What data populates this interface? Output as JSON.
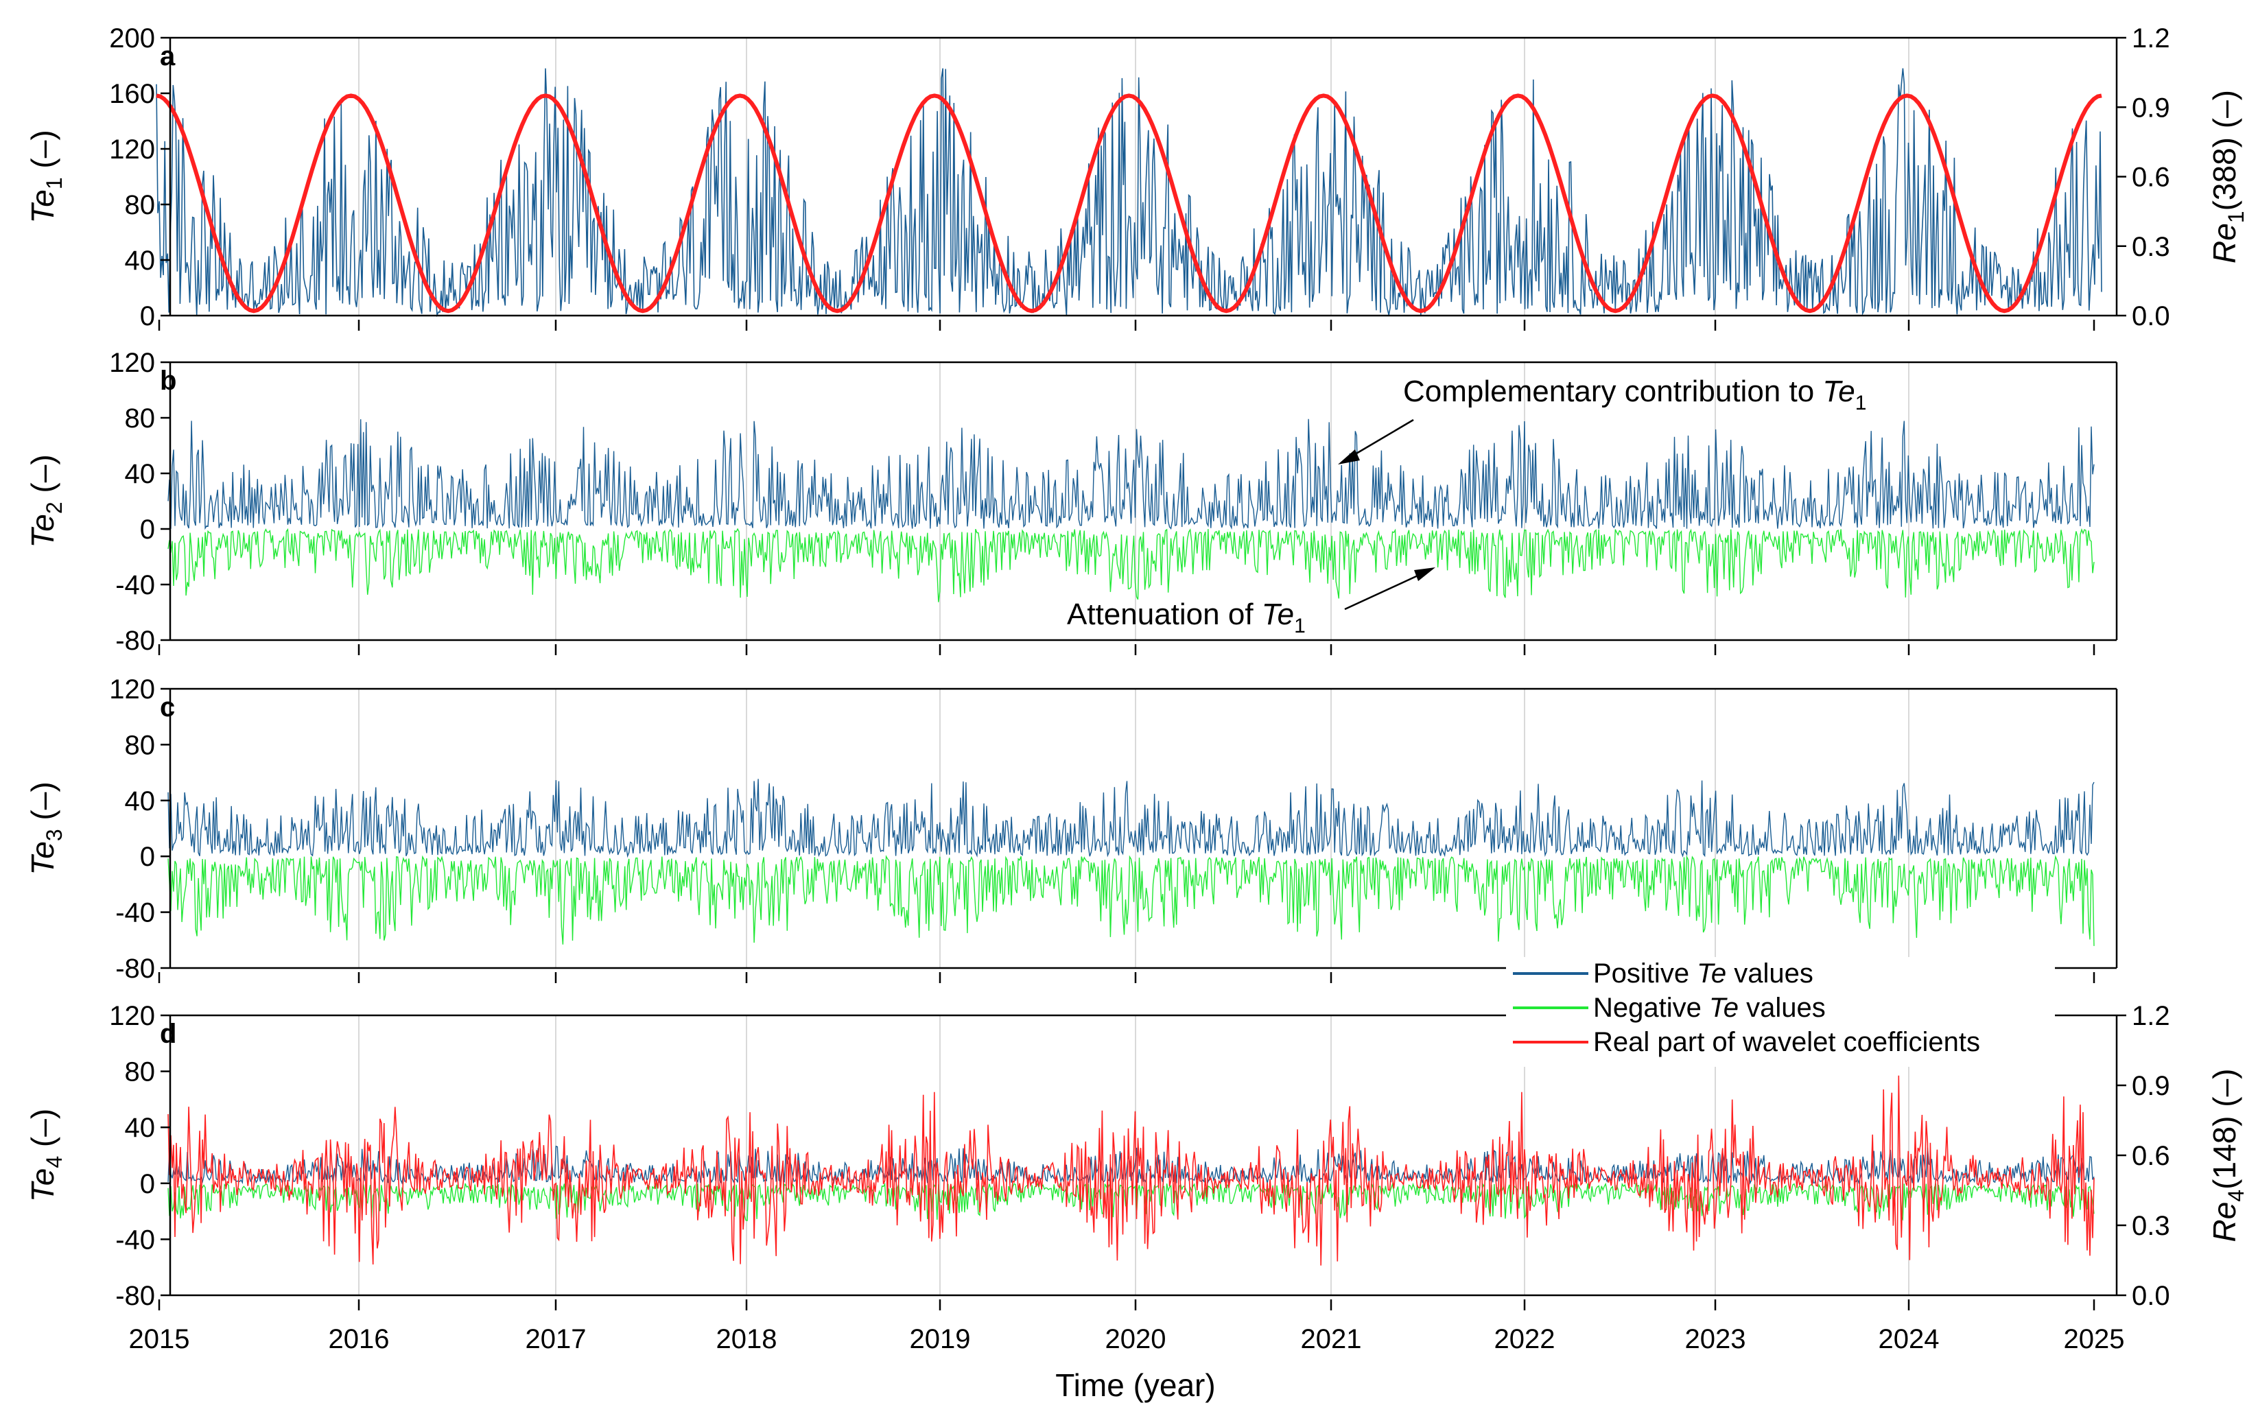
{
  "figure": {
    "xlabel": "Time (year)",
    "year_ticks": [
      "2015",
      "2016",
      "2017",
      "2018",
      "2019",
      "2020",
      "2021",
      "2022",
      "2023",
      "2024",
      "2025"
    ],
    "legend": [
      {
        "label_pre": "Positive ",
        "label_italic": "Te",
        "label_post": " values",
        "color": "#1a5d93"
      },
      {
        "label_pre": "Negative ",
        "label_italic": "Te",
        "label_post": " values",
        "color": "#22e836"
      },
      {
        "label_pre": "Real part of wavelet coefficients",
        "label_italic": "",
        "label_post": "",
        "color": "#ff2020"
      }
    ],
    "annotations": {
      "complementary": {
        "text": "Complementary contribution to ",
        "italic": "Te",
        "sub": "1"
      },
      "attenuation": {
        "text": "Attenuation of ",
        "italic": "Te",
        "sub": "1"
      }
    }
  },
  "chart_data": [
    {
      "panel": "a",
      "type": "line",
      "x_range": [
        2015,
        2025
      ],
      "ylabel": {
        "italic": "Te",
        "sub": "1",
        "unit": " (–)"
      },
      "ylim": [
        0,
        200
      ],
      "yticks": [
        "0",
        "40",
        "80",
        "120",
        "160",
        "200"
      ],
      "y2label": {
        "italic": "Re",
        "sub": "1",
        "unit": "(388)  (–)"
      },
      "y2lim": [
        0.0,
        1.2
      ],
      "y2ticks": [
        "0.0",
        "0.3",
        "0.6",
        "0.9",
        "1.2"
      ],
      "series": [
        {
          "name": "",
          "color": "#1a5d93",
          "note": "dense daily series, approx. 0–180 with annual cycle (peaks near January)",
          "amplitude_range": [
            0,
            180
          ]
        },
        {
          "name": "",
          "axis": "y2",
          "color": "#ff2020",
          "type": "sine",
          "period_years": 1.0,
          "maxima_x": [
            2015.0,
            2015.98,
            2016.98,
            2017.98,
            2019.02,
            2020.03,
            2021.05,
            2022.05,
            2023.05,
            2024.02,
            2025.0
          ],
          "minima_x": [
            2015.48,
            2016.48,
            2017.46,
            2018.5,
            2019.52,
            2020.52,
            2021.56,
            2022.55,
            2023.54,
            2024.55
          ],
          "max_value": 0.95,
          "min_value": 0.02
        }
      ]
    },
    {
      "panel": "b",
      "type": "line",
      "x_range": [
        2015,
        2025
      ],
      "ylabel": {
        "italic": "Te",
        "sub": "2",
        "unit": " (–)"
      },
      "ylim": [
        -80,
        120
      ],
      "yticks": [
        "-80",
        "-40",
        "0",
        "40",
        "80",
        "120"
      ],
      "series": [
        {
          "name": "Positive Te values",
          "color": "#1a5d93",
          "range": [
            0,
            80
          ]
        },
        {
          "name": "Negative Te values",
          "color": "#22e836",
          "range": [
            -50,
            0
          ]
        }
      ]
    },
    {
      "panel": "c",
      "type": "line",
      "x_range": [
        2015,
        2025
      ],
      "ylabel": {
        "italic": "Te",
        "sub": "3",
        "unit": " (–)"
      },
      "ylim": [
        -80,
        120
      ],
      "yticks": [
        "-80",
        "-40",
        "0",
        "40",
        "80",
        "120"
      ],
      "series": [
        {
          "name": "Positive Te values",
          "color": "#1a5d93",
          "range": [
            0,
            55
          ]
        },
        {
          "name": "Negative Te values",
          "color": "#22e836",
          "range": [
            -62,
            0
          ]
        }
      ]
    },
    {
      "panel": "d",
      "type": "line",
      "x_range": [
        2015,
        2025
      ],
      "ylabel": {
        "italic": "Te",
        "sub": "4",
        "unit": " (–)"
      },
      "ylim": [
        -80,
        120
      ],
      "yticks": [
        "-80",
        "-40",
        "0",
        "40",
        "80",
        "120"
      ],
      "y2label": {
        "italic": "Re",
        "sub": "4",
        "unit": "(148)  (–)"
      },
      "y2lim": [
        0.0,
        1.2
      ],
      "y2ticks": [
        "0.0",
        "0.3",
        "0.6",
        "0.9",
        "1.2"
      ],
      "series": [
        {
          "name": "Positive Te values",
          "color": "#1a5d93",
          "range": [
            0,
            25
          ]
        },
        {
          "name": "Negative Te values",
          "color": "#22e836",
          "range": [
            -25,
            0
          ]
        },
        {
          "name": "Real part of wavelet coefficients",
          "color": "#ff2020",
          "axis": "y2",
          "range": [
            0.0,
            1.05
          ]
        }
      ]
    }
  ]
}
